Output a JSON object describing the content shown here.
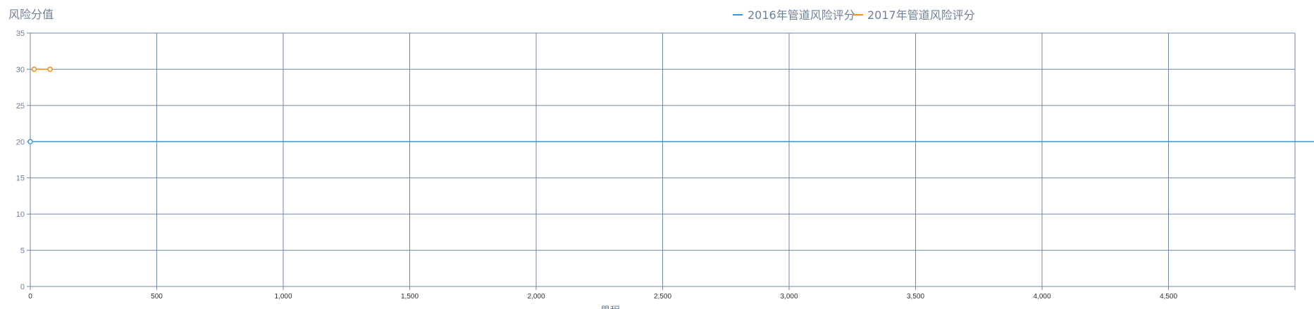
{
  "chart_data": {
    "type": "line",
    "title": "风险分值",
    "xlabel": "里程",
    "ylabel": "风险分值",
    "xlim": [
      0,
      5000
    ],
    "ylim": [
      0,
      35
    ],
    "x_ticks": [
      0,
      500,
      1000,
      1500,
      2000,
      2500,
      3000,
      3500,
      4000,
      4500
    ],
    "x_tick_labels": [
      "0",
      "500",
      "1,000",
      "1,500",
      "2,000",
      "2,500",
      "3,000",
      "3,500",
      "4,000",
      "4,500"
    ],
    "y_ticks": [
      0,
      5,
      10,
      15,
      20,
      25,
      30,
      35
    ],
    "y_tick_labels": [
      "0",
      "5",
      "10",
      "15",
      "20",
      "25",
      "30",
      "35"
    ],
    "grid": true,
    "legend_position": "top-right",
    "series": [
      {
        "name": "2016年管道风险评分",
        "color": "#3a9ad9",
        "points": [
          [
            0,
            20
          ],
          [
            5200,
            20
          ]
        ],
        "markers": [
          [
            0,
            20
          ]
        ]
      },
      {
        "name": "2017年管道风险评分",
        "color": "#f0901a",
        "points": [
          [
            15,
            30
          ],
          [
            78,
            30
          ]
        ],
        "markers": [
          [
            15,
            30
          ],
          [
            78,
            30
          ]
        ]
      }
    ]
  }
}
